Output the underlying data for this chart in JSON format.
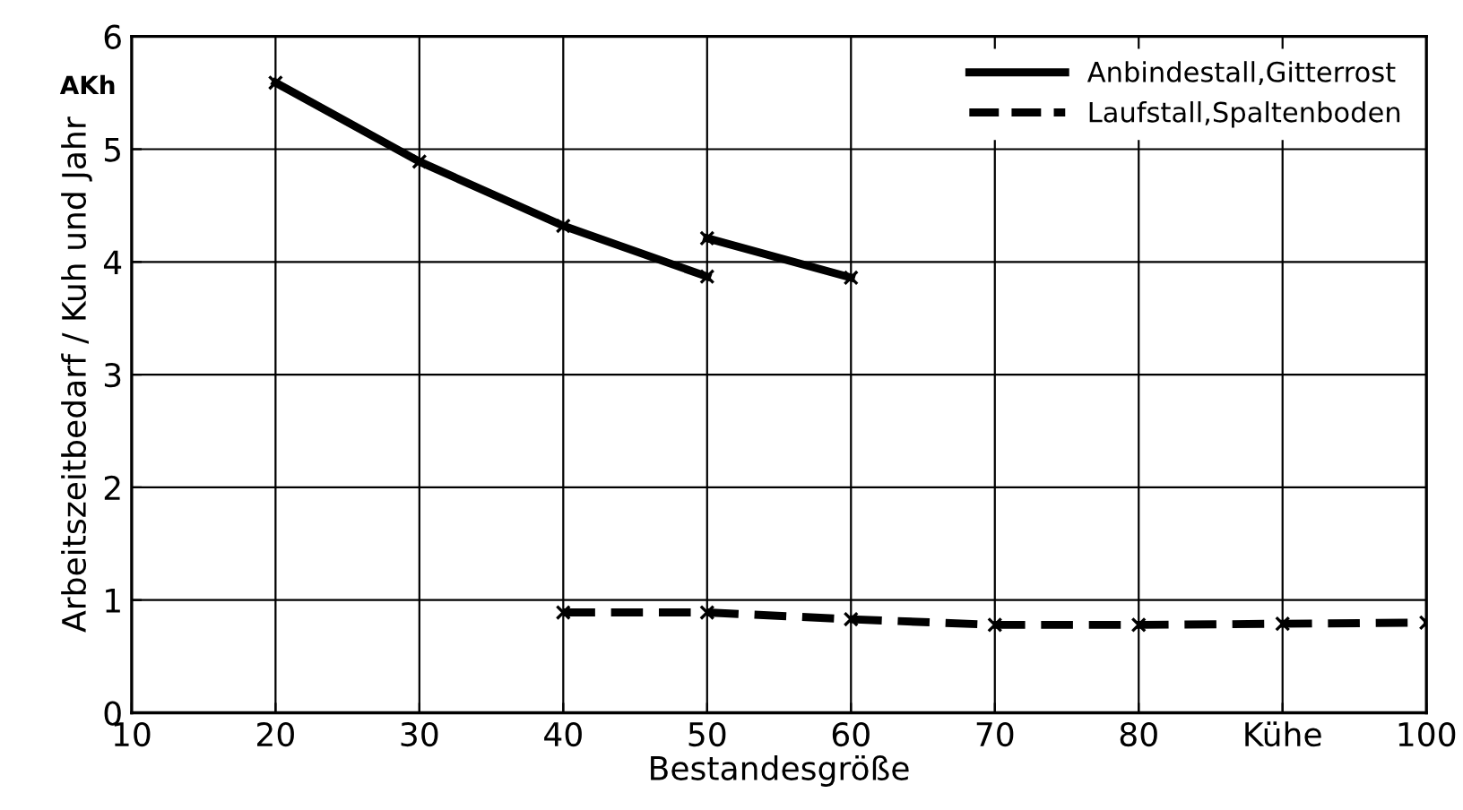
{
  "chart_data": {
    "type": "line",
    "xlabel": "Bestandesgröße",
    "ylabel": "Arbeitszeitbedarf / Kuh und Jahr",
    "annotations": [
      "AKh"
    ],
    "xlim": [
      10,
      100
    ],
    "xticks": [
      10,
      20,
      30,
      40,
      50,
      60,
      70,
      80,
      {
        "value": 90,
        "label": "Kühe"
      },
      100
    ],
    "ylim": [
      0,
      6
    ],
    "yticks": [
      0,
      1,
      2,
      3,
      4,
      5,
      6
    ],
    "grid": true,
    "legend": "top right",
    "marker": "cross",
    "series": [
      {
        "name": "Anbindestall,Gitterrost",
        "color": "#000000",
        "line_style": "solid",
        "x": [
          20,
          30,
          40,
          50
        ],
        "values": [
          5.59,
          4.89,
          4.32,
          3.87
        ]
      },
      {
        "color": "#000000",
        "line_style": "solid",
        "x": [
          50,
          60
        ],
        "values": [
          4.21,
          3.86
        ]
      },
      {
        "name": "Laufstall,Spaltenboden",
        "color": "#000000",
        "line_style": "dashed",
        "x": [
          40,
          50,
          60,
          70,
          80,
          90,
          100
        ],
        "values": [
          0.89,
          0.89,
          0.83,
          0.78,
          0.78,
          0.79,
          0.8
        ]
      }
    ]
  }
}
